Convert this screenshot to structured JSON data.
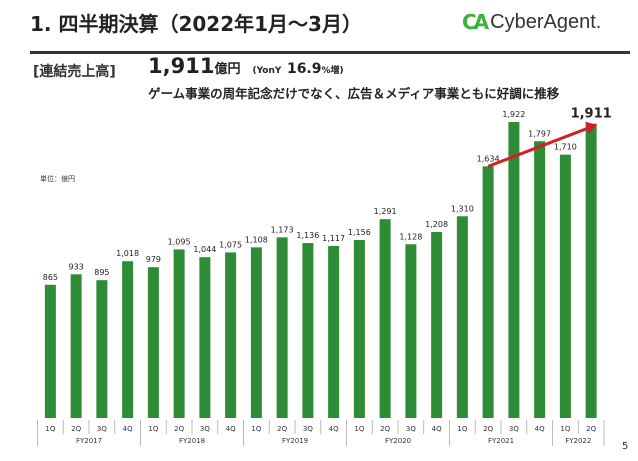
{
  "header": {
    "title": "1. 四半期決算（2022年1月～3月）",
    "logo_mark": "CA",
    "logo_text": "CyberAgent."
  },
  "summary": {
    "label": "[連結売上高]",
    "value": "1,911",
    "unit": "億円",
    "yoy_prefix": "(YonY",
    "yoy_value": "16.9",
    "yoy_suffix": "%増)",
    "comment": "ゲーム事業の周年記念だけでなく、広告＆メディア事業ともに好調に推移"
  },
  "unit_label": "単位：億円",
  "page_number": "5",
  "chart_data": {
    "type": "bar",
    "categories": [
      "1Q",
      "2Q",
      "3Q",
      "4Q",
      "1Q",
      "2Q",
      "3Q",
      "4Q",
      "1Q",
      "2Q",
      "3Q",
      "4Q",
      "1Q",
      "2Q",
      "3Q",
      "4Q",
      "1Q",
      "2Q",
      "3Q",
      "4Q",
      "1Q",
      "2Q"
    ],
    "groups": [
      {
        "name": "FY2017",
        "count": 4
      },
      {
        "name": "FY2018",
        "count": 4
      },
      {
        "name": "FY2019",
        "count": 4
      },
      {
        "name": "FY2020",
        "count": 4
      },
      {
        "name": "FY2021",
        "count": 4
      },
      {
        "name": "FY2022",
        "count": 2
      }
    ],
    "values": [
      865,
      933,
      895,
      1018,
      979,
      1095,
      1044,
      1075,
      1108,
      1173,
      1136,
      1117,
      1156,
      1291,
      1128,
      1208,
      1310,
      1634,
      1922,
      1797,
      1710,
      1911
    ],
    "labels": [
      "865",
      "933",
      "895",
      "1,018",
      "979",
      "1,095",
      "1,044",
      "1,075",
      "1,108",
      "1,173",
      "1,136",
      "1,117",
      "1,156",
      "1,291",
      "1,128",
      "1,208",
      "1,310",
      "1,634",
      "1,922",
      "1,797",
      "1,710",
      "1,911"
    ],
    "bar_color": "#2e8b36",
    "arrow_color": "#d42020",
    "annotation": {
      "type": "arrow",
      "from_index": 17,
      "to_index": 21
    },
    "ylim": [
      0,
      2000
    ]
  }
}
